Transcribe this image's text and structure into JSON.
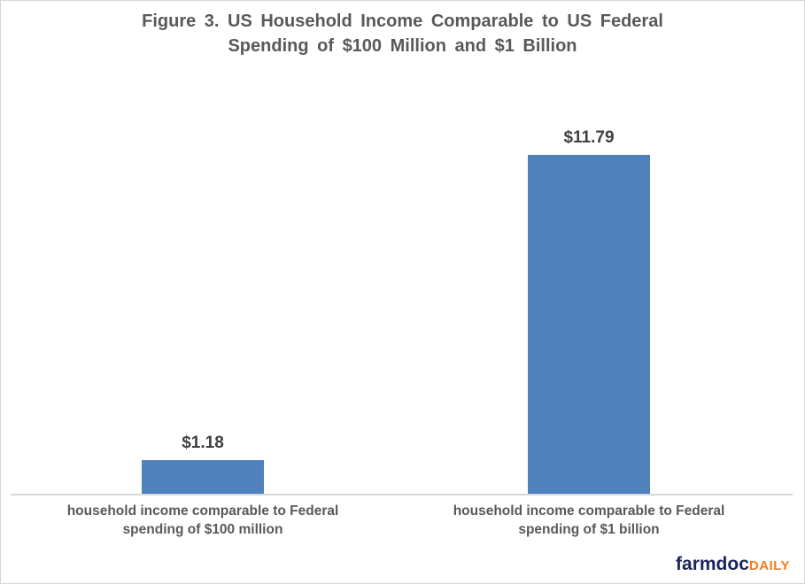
{
  "chart_data": {
    "type": "bar",
    "title": "Figure 3. US Household Income Comparable to US Federal Spending of $100 Million and $1 Billion",
    "categories": [
      "household income comparable to Federal spending of $100 million",
      "household income comparable to Federal spending of $1 billion"
    ],
    "values": [
      1.18,
      11.79
    ],
    "data_labels": [
      "$1.18",
      "$11.79"
    ],
    "xlabel": "",
    "ylabel": "",
    "ylim": [
      0,
      12
    ],
    "grid": false,
    "legend": false,
    "bar_color": "#4F81BD"
  },
  "title": {
    "line1": "Figure 3.  US Household Income Comparable to US Federal",
    "line2": "Spending of $100 Million and $1 Billion"
  },
  "bars": [
    {
      "value": 1.18,
      "value_label": "$1.18",
      "label_line1": "household income comparable to Federal",
      "label_line2": "spending of $100 million"
    },
    {
      "value": 11.79,
      "value_label": "$11.79",
      "label_line1": "household income comparable to Federal",
      "label_line2": "spending of $1 billion"
    }
  ],
  "branding": {
    "name": "farmdoc",
    "suffix": "DAILY"
  },
  "colors": {
    "bar": "#4F81BD",
    "title_text": "#595959",
    "value_label": "#3F3F3F",
    "category_label": "#595959",
    "axis_line": "#D9D9D9",
    "brand_navy": "#1B2559",
    "brand_orange": "#F47B20"
  }
}
